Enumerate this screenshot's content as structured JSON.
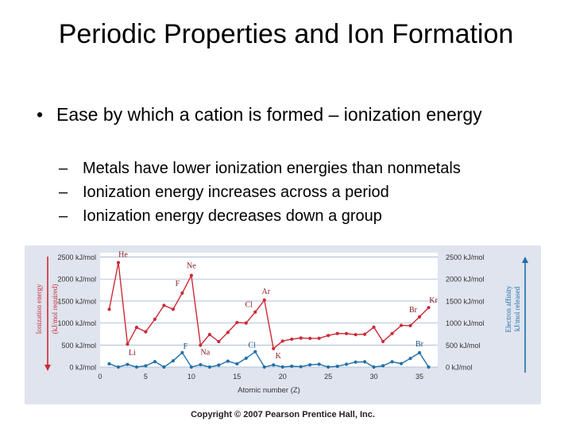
{
  "slide": {
    "title": "Periodic Properties and Ion Formation",
    "bullet": "Ease by which a cation is formed – ionization energy",
    "sub_bullets": [
      "Metals have lower ionization energies than nonmetals",
      "Ionization energy increases across a period",
      "Ionization energy decreases down a group"
    ],
    "copyright": "Copyright © 2007 Pearson Prentice Hall, Inc."
  },
  "chart_data": {
    "type": "line",
    "xlabel": "Atomic number (Z)",
    "ylabel_left": [
      "Ionization energy",
      "(kJ/mol required)"
    ],
    "ylabel_right": [
      "Electron affinity",
      "kJ/mol released"
    ],
    "x_ticks": [
      0,
      5,
      10,
      15,
      20,
      25,
      30,
      35
    ],
    "xlim": [
      0,
      37
    ],
    "y_ticks": [
      "0 kJ/mol",
      "500 kJ/mol",
      "1000 kJ/mol",
      "1500 kJ/mol",
      "2000 kJ/mol",
      "2500 kJ/mol"
    ],
    "y_tick_values": [
      0,
      500,
      1000,
      1500,
      2000,
      2500
    ],
    "ylim": [
      0,
      2600
    ],
    "colors": {
      "ionization": "#cc2a36",
      "affinity": "#1f6fa8",
      "panel": "#dfe4ee",
      "plot_bg": "#ffffff"
    },
    "series": [
      {
        "name": "Ionization energy",
        "x": [
          1,
          2,
          3,
          4,
          5,
          6,
          7,
          8,
          9,
          10,
          11,
          12,
          13,
          14,
          15,
          16,
          17,
          18,
          19,
          20,
          21,
          22,
          23,
          24,
          25,
          26,
          27,
          28,
          29,
          30,
          31,
          32,
          33,
          34,
          35,
          36
        ],
        "values": [
          1312,
          2372,
          520,
          900,
          801,
          1086,
          1402,
          1314,
          1681,
          2081,
          496,
          738,
          578,
          787,
          1012,
          1000,
          1251,
          1521,
          419,
          590,
          633,
          659,
          651,
          653,
          717,
          762,
          760,
          737,
          745,
          906,
          579,
          762,
          947,
          941,
          1140,
          1351
        ]
      },
      {
        "name": "Electron affinity",
        "x": [
          1,
          2,
          3,
          4,
          5,
          6,
          7,
          8,
          9,
          10,
          11,
          12,
          13,
          14,
          15,
          16,
          17,
          18,
          19,
          20,
          21,
          22,
          23,
          24,
          25,
          26,
          27,
          28,
          29,
          30,
          31,
          32,
          33,
          34,
          35,
          36
        ],
        "values": [
          73,
          0,
          60,
          0,
          27,
          122,
          0,
          141,
          328,
          0,
          53,
          0,
          43,
          134,
          72,
          200,
          349,
          0,
          48,
          2,
          18,
          8,
          51,
          64,
          0,
          16,
          64,
          112,
          119,
          0,
          29,
          119,
          78,
          195,
          325,
          0
        ]
      }
    ],
    "element_labels": [
      {
        "symbol": "He",
        "z": 2,
        "series": "ionization"
      },
      {
        "symbol": "Ne",
        "z": 10,
        "series": "ionization"
      },
      {
        "symbol": "F",
        "z": 9,
        "series": "ionization"
      },
      {
        "symbol": "Ar",
        "z": 18,
        "series": "ionization"
      },
      {
        "symbol": "Cl",
        "z": 17,
        "series": "ionization"
      },
      {
        "symbol": "Kr",
        "z": 36,
        "series": "ionization"
      },
      {
        "symbol": "Br",
        "z": 35,
        "series": "ionization"
      },
      {
        "symbol": "Li",
        "z": 3,
        "series": "ionization"
      },
      {
        "symbol": "Na",
        "z": 11,
        "series": "ionization"
      },
      {
        "symbol": "K",
        "z": 19,
        "series": "ionization"
      },
      {
        "symbol": "F",
        "z": 9,
        "series": "affinity"
      },
      {
        "symbol": "Cl",
        "z": 17,
        "series": "affinity"
      },
      {
        "symbol": "Br",
        "z": 35,
        "series": "affinity"
      }
    ]
  }
}
